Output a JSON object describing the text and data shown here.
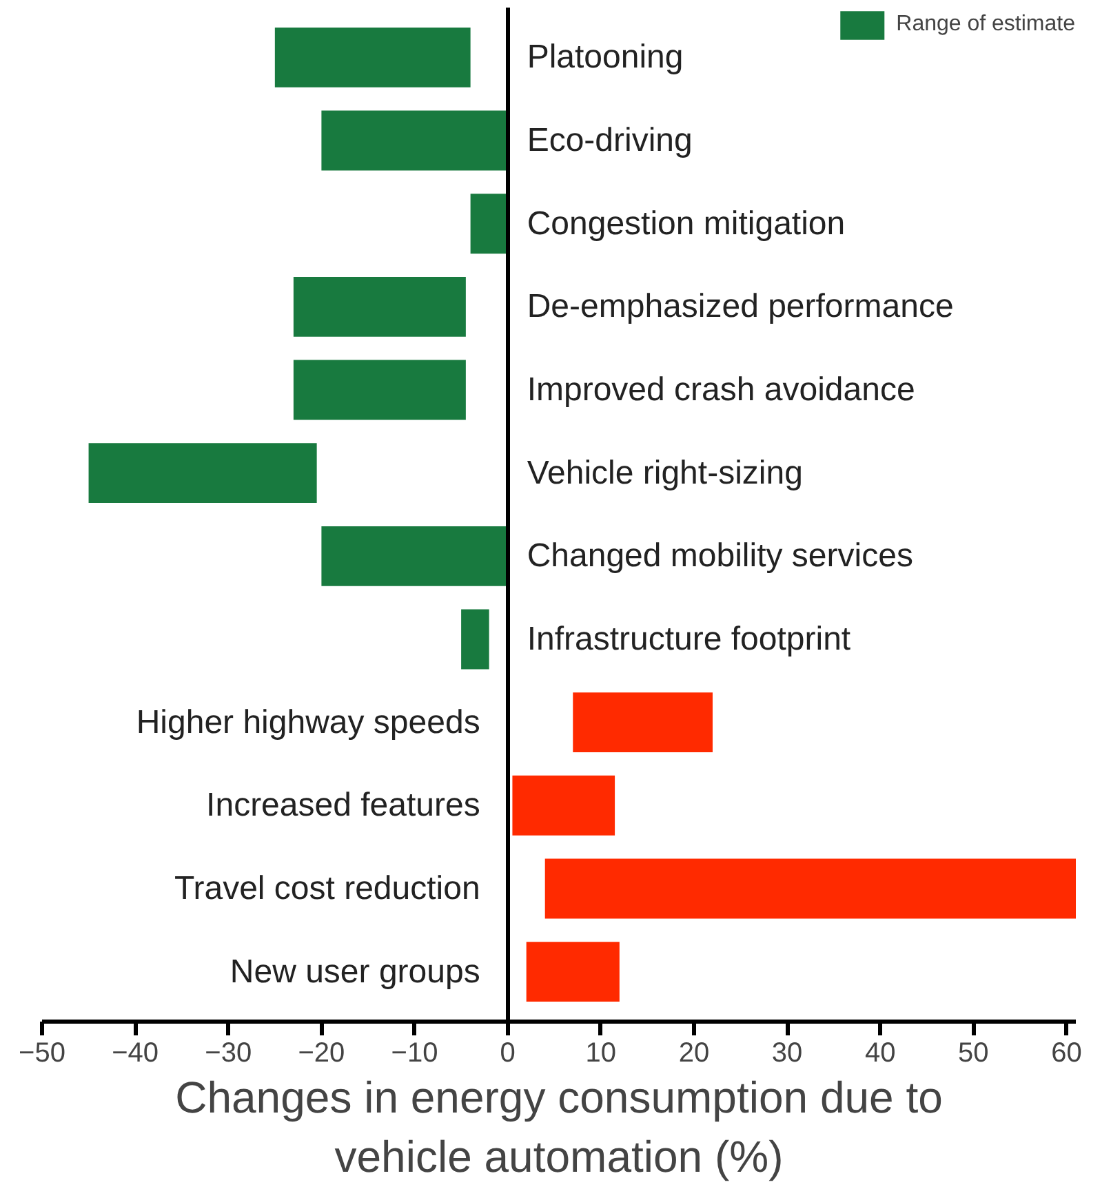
{
  "chart_data": {
    "type": "bar",
    "orientation": "horizontal",
    "categories": [
      "Platooning",
      "Eco-driving",
      "Congestion mitigation",
      "De-emphasized performance",
      "Improved crash avoidance",
      "Vehicle right-sizing",
      "Changed mobility services",
      "Infrastructure footprint",
      "Higher highway speeds",
      "Increased features",
      "Travel cost reduction",
      "New user groups"
    ],
    "series": [
      {
        "name": "Range of estimate",
        "color": "#187a3f",
        "values": [
          21,
          20,
          4,
          18.5,
          18.5,
          24.5,
          20,
          3,
          null,
          null,
          null,
          null
        ],
        "base": [
          -25,
          -20,
          -4,
          -23,
          -23,
          -45,
          -20,
          -5,
          null,
          null,
          null,
          null
        ]
      },
      {
        "color": "#ff2a00",
        "values": [
          null,
          null,
          null,
          null,
          null,
          null,
          null,
          null,
          15,
          11,
          57,
          10
        ],
        "base": [
          null,
          null,
          null,
          null,
          null,
          null,
          null,
          null,
          7,
          0.5,
          4,
          2
        ]
      }
    ],
    "xlim": [
      -50,
      61
    ],
    "xticks": [
      -50,
      -40,
      -30,
      -20,
      -10,
      0,
      10,
      20,
      30,
      40,
      50,
      60
    ],
    "xlabel": "Changes in energy consumption due to vehicle automation (%)",
    "legend": "top right",
    "grid": false,
    "tick_labels": "x"
  }
}
